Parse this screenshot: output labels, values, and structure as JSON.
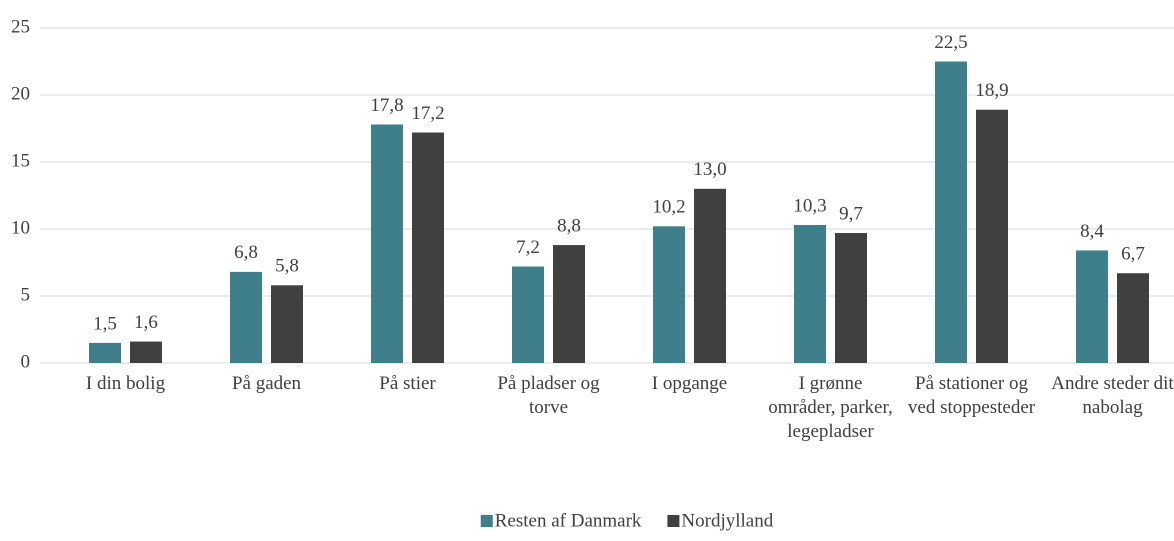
{
  "chart_data": {
    "type": "bar",
    "categories": [
      "I din bolig",
      "På gaden",
      "På stier",
      "På pladser og torve",
      "I opgange",
      "I grønne områder, parker, legepladser",
      "På stationer og ved stoppesteder",
      "Andre steder dit nabolag"
    ],
    "series": [
      {
        "name": "Resten af Danmark",
        "color": "#3e7f8b",
        "values": [
          1.5,
          6.8,
          17.8,
          7.2,
          10.2,
          10.3,
          22.5,
          8.4
        ],
        "value_labels": [
          "1,5",
          "6,8",
          "17,8",
          "7,2",
          "10,2",
          "10,3",
          "22,5",
          "8,4"
        ]
      },
      {
        "name": "Nordjylland",
        "color": "#404040",
        "values": [
          1.6,
          5.8,
          17.2,
          8.8,
          13.0,
          9.7,
          18.9,
          6.7
        ],
        "value_labels": [
          "1,6",
          "5,8",
          "17,2",
          "8,8",
          "13,0",
          "9,7",
          "18,9",
          "6,7"
        ]
      }
    ],
    "ylim": [
      0,
      25
    ],
    "yticks": [
      0,
      5,
      10,
      15,
      20,
      25
    ],
    "grid": true,
    "legend": "bottom"
  }
}
